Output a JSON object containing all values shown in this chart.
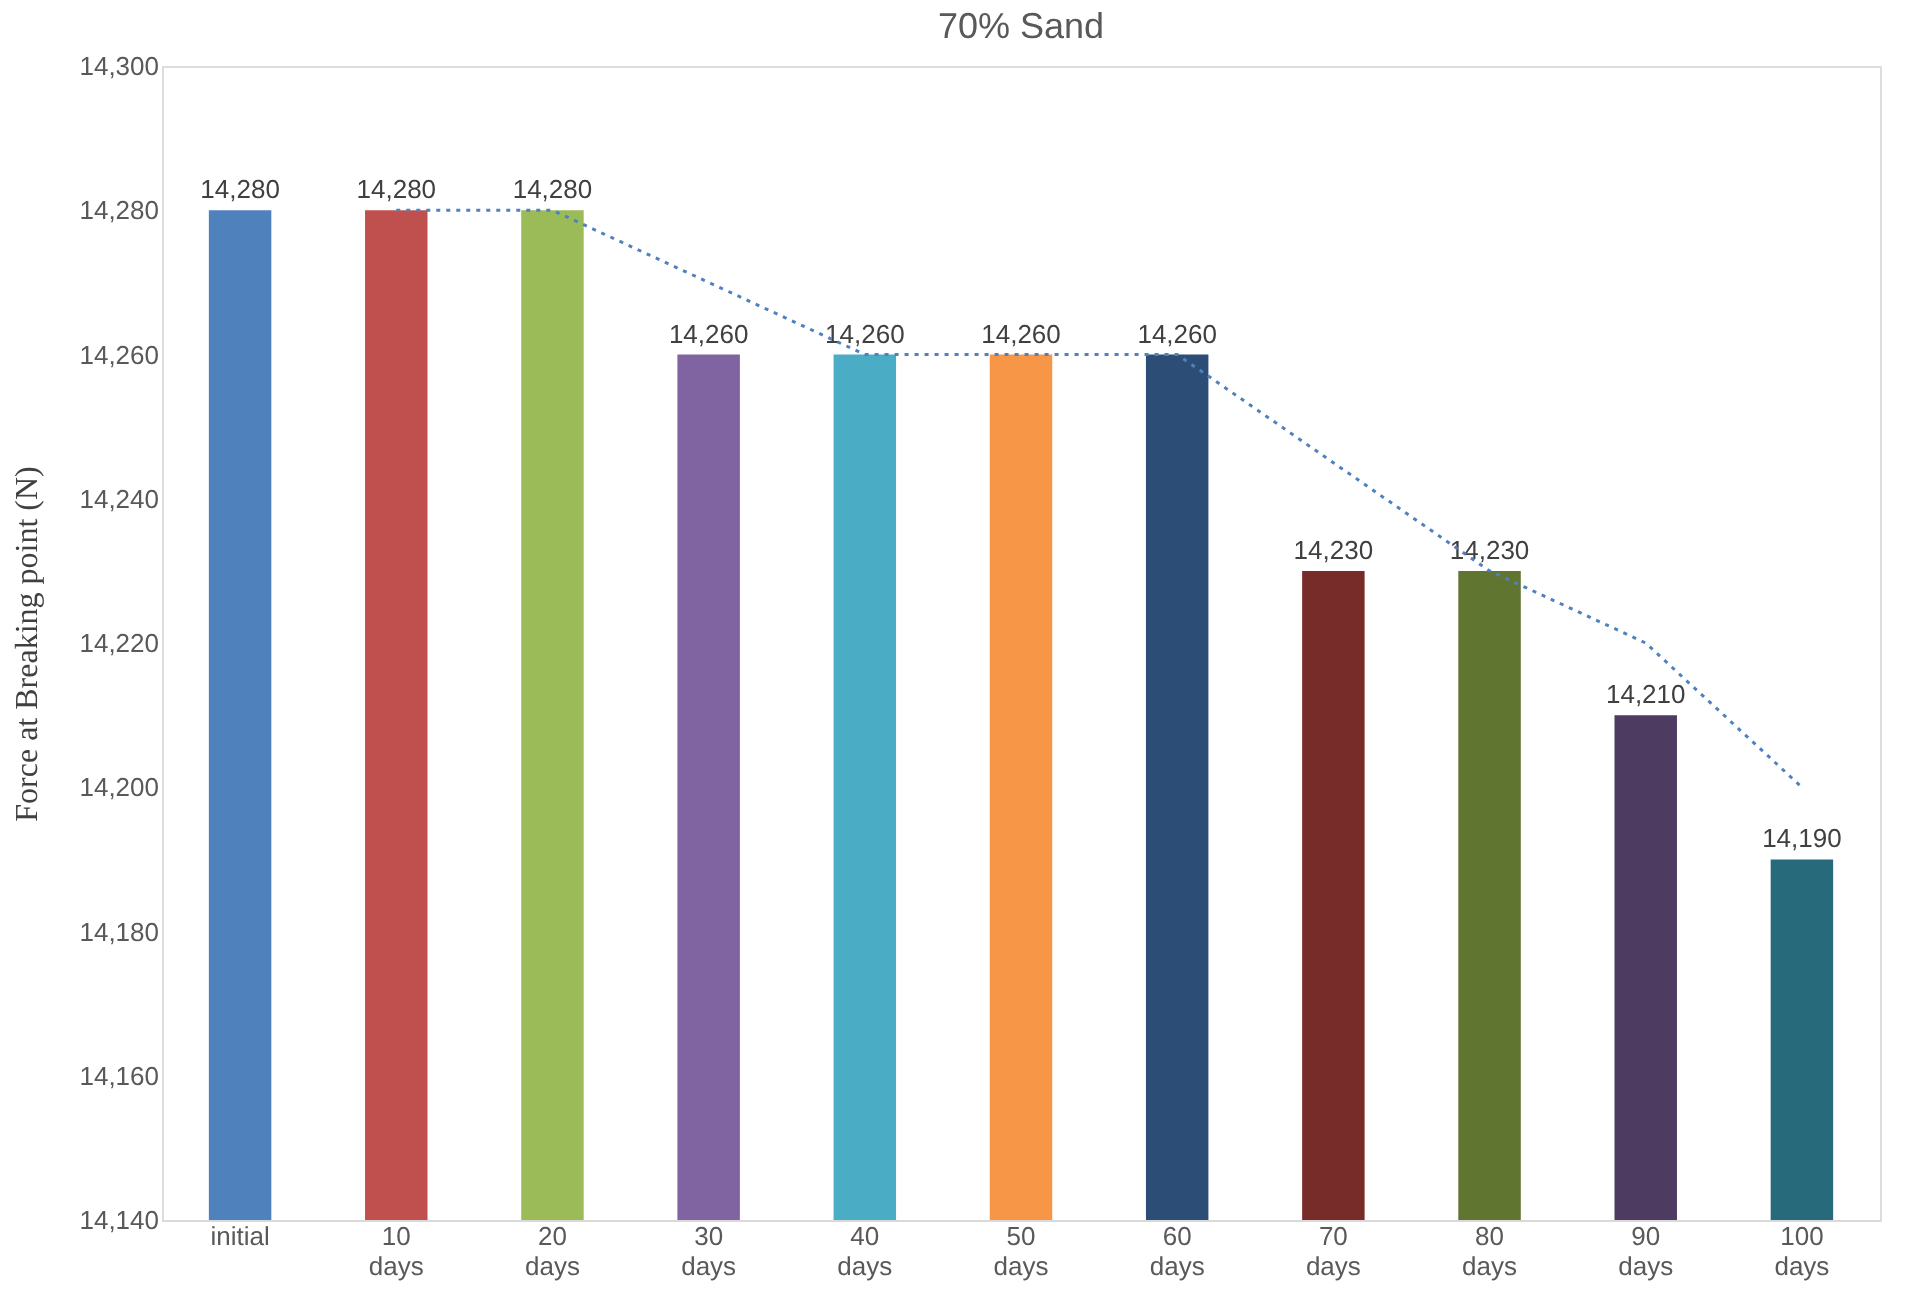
{
  "chart_data": {
    "type": "bar",
    "title": "70% Sand",
    "ylabel": "Force at Breaking point (N)",
    "categories": [
      "initial",
      "10 days",
      "20 days",
      "30 days",
      "40 days",
      "50 days",
      "60 days",
      "70 days",
      "80 days",
      "90 days",
      "100 days"
    ],
    "series": [
      {
        "values": [
          14280,
          14280,
          14280,
          14260,
          14260,
          14260,
          14260,
          14230,
          14230,
          14210,
          14190
        ],
        "value_labels": [
          "14,280",
          "14,280",
          "14,280",
          "14,260",
          "14,260",
          "14,260",
          "14,260",
          "14,230",
          "14,230",
          "14,210",
          "14,190"
        ],
        "colors": [
          "#4f81bd",
          "#c0504d",
          "#9bbb59",
          "#8064a2",
          "#4bacc6",
          "#f79646",
          "#2c4d75",
          "#772c2a",
          "#5f7530",
          "#4d3b62",
          "#276a7c"
        ]
      },
      {
        "type": "line",
        "color": "#4f81bd",
        "line_style": "dotted",
        "marker": "none",
        "x": [
          "10 days",
          "20 days",
          "30 days",
          "40 days",
          "50 days",
          "60 days",
          "70 days",
          "80 days",
          "90 days",
          "100 days"
        ],
        "values": [
          14280,
          14280,
          14270,
          14260,
          14260,
          14260,
          14245,
          14230,
          14220,
          14200
        ]
      }
    ],
    "ylim": [
      14140,
      14300
    ],
    "yticks": [
      {
        "value": 14140,
        "label": "14,140"
      },
      {
        "value": 14160,
        "label": "14,160"
      },
      {
        "value": 14180,
        "label": "14,180"
      },
      {
        "value": 14200,
        "label": "14,200"
      },
      {
        "value": 14220,
        "label": "14,220"
      },
      {
        "value": 14240,
        "label": "14,240"
      },
      {
        "value": 14260,
        "label": "14,260"
      },
      {
        "value": 14280,
        "label": "14,280"
      },
      {
        "value": 14300,
        "label": "14,300"
      }
    ],
    "grid": false
  }
}
